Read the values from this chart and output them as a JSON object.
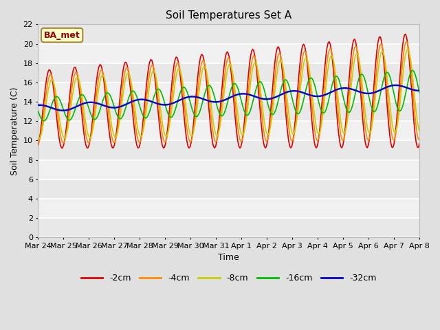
{
  "title": "Soil Temperatures Set A",
  "xlabel": "Time",
  "ylabel": "Soil Temperature (C)",
  "annotation": "BA_met",
  "ylim": [
    0,
    22
  ],
  "yticks": [
    0,
    2,
    4,
    6,
    8,
    10,
    12,
    14,
    16,
    18,
    20,
    22
  ],
  "x_labels": [
    "Mar 24",
    "Mar 25",
    "Mar 26",
    "Mar 27",
    "Mar 28",
    "Mar 29",
    "Mar 30",
    "Mar 31",
    "Apr 1",
    "Apr 2",
    "Apr 3",
    "Apr 4",
    "Apr 5",
    "Apr 6",
    "Apr 7",
    "Apr 8"
  ],
  "series_colors": [
    "#dd0000",
    "#ff8800",
    "#cccc00",
    "#00bb00",
    "#0000cc"
  ],
  "series_names": [
    "-2cm",
    "-4cm",
    "-8cm",
    "-16cm",
    "-32cm"
  ],
  "background_color": "#e0e0e0",
  "plot_bg_color": "#ebebeb",
  "figsize": [
    6.4,
    4.8
  ],
  "dpi": 100
}
